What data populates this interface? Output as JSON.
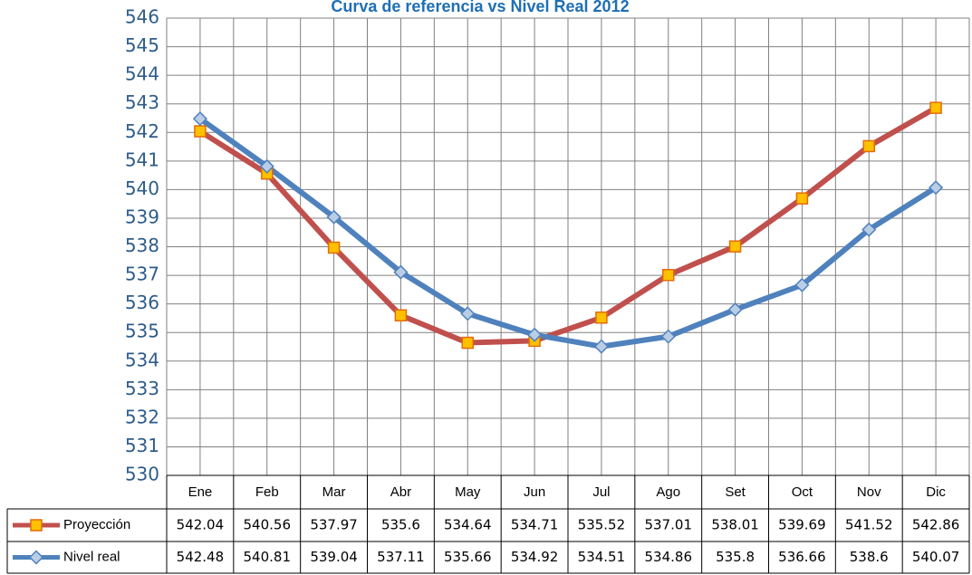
{
  "chart_data": {
    "type": "line",
    "title": "Curva de referencia vs Nivel Real 2012",
    "categories": [
      "Ene",
      "Feb",
      "Mar",
      "Abr",
      "May",
      "Jun",
      "Jul",
      "Ago",
      "Set",
      "Oct",
      "Nov",
      "Dic"
    ],
    "series": [
      {
        "name": "Proyección",
        "color": "#c0504d",
        "marker": "square",
        "marker_color": "#ffc000",
        "values": [
          542.04,
          540.56,
          537.97,
          535.6,
          534.64,
          534.71,
          535.52,
          537.01,
          538.01,
          539.69,
          541.52,
          542.86
        ]
      },
      {
        "name": "Nivel real",
        "color": "#4f81bd",
        "marker": "diamond",
        "marker_color": "#b9cde5",
        "values": [
          542.48,
          540.81,
          539.04,
          537.11,
          535.66,
          534.92,
          534.51,
          534.86,
          535.8,
          536.66,
          538.6,
          540.07
        ]
      }
    ],
    "ylim": [
      530,
      546
    ],
    "yticks": [
      530,
      531,
      532,
      533,
      534,
      535,
      536,
      537,
      538,
      539,
      540,
      541,
      542,
      543,
      544,
      545,
      546
    ],
    "grid": true,
    "data_table": true
  }
}
